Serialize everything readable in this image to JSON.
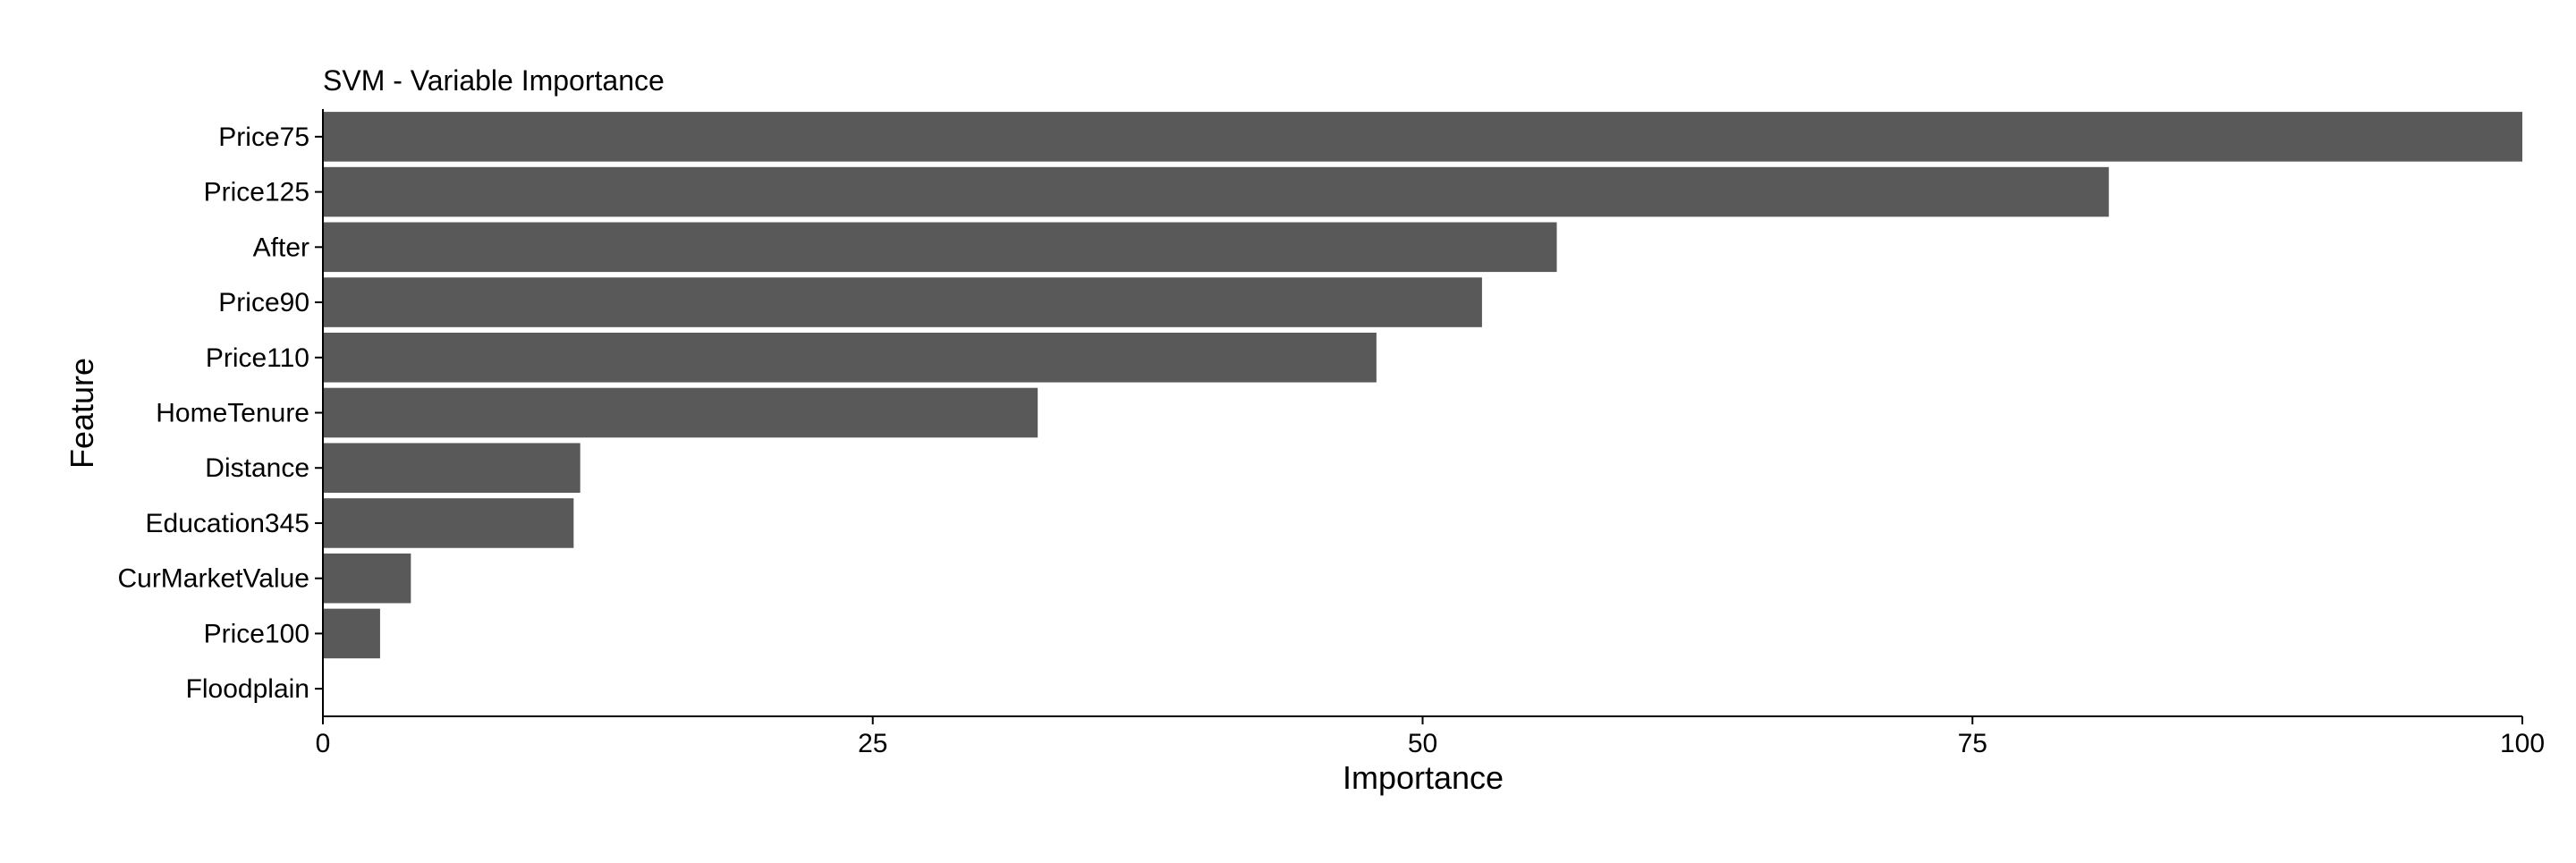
{
  "chart_data": {
    "type": "bar",
    "orientation": "horizontal",
    "title": "SVM - Variable Importance",
    "xlabel": "Importance",
    "ylabel": "Feature",
    "categories": [
      "Price75",
      "Price125",
      "After",
      "Price90",
      "Price110",
      "HomeTenure",
      "Distance",
      "Education345",
      "CurMarketValue",
      "Price100",
      "Floodplain"
    ],
    "values": [
      100,
      81.2,
      56.1,
      52.7,
      47.9,
      32.5,
      11.7,
      11.4,
      4.0,
      2.6,
      0
    ],
    "xlim": [
      0,
      100
    ],
    "xticks": [
      0,
      25,
      50,
      75,
      100
    ],
    "xtick_labels": [
      "0",
      "25",
      "50",
      "75",
      "100"
    ],
    "grid": false,
    "legend": "none",
    "bar_color": "#595959"
  }
}
